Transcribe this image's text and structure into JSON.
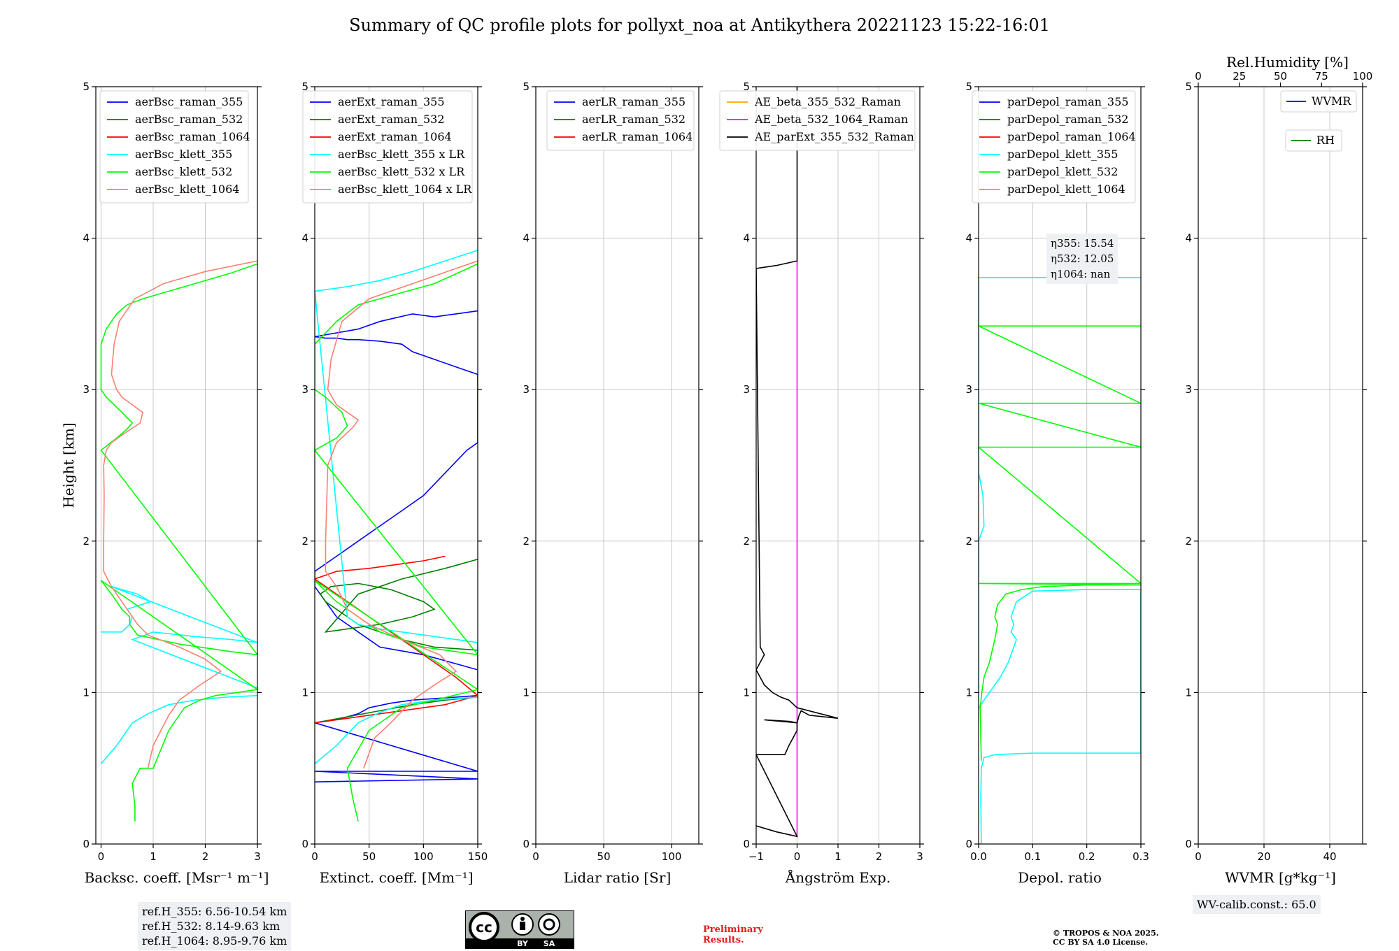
{
  "title": "Summary of QC profile plots for pollyxt_noa at Antikythera 20221123 15:22-16:01",
  "colors": {
    "grid": "#c8c8c8",
    "blue": "#0000ff",
    "green": "#008000",
    "red": "#ff0000",
    "cyan": "#00ffff",
    "lime": "#00ff00",
    "salmon": "#fa8072",
    "orange": "#ffa500",
    "magenta": "#ff00ff",
    "black": "#000000"
  },
  "chart_data": [
    {
      "type": "line",
      "panel": "backscatter",
      "xlabel": "Backsc. coeff. [Msr⁻¹ m⁻¹]",
      "ylabel": "Height [km]",
      "xlim": [
        -0.1,
        3
      ],
      "ylim": [
        0,
        5
      ],
      "xticks": [
        "0",
        "1",
        "2",
        "3"
      ],
      "xtick_values": [
        0,
        1,
        2,
        3
      ],
      "yticks": [
        "0",
        "1",
        "2",
        "3",
        "4",
        "5"
      ],
      "legend_location": "top-right",
      "series": [
        {
          "name": "aerBsc_raman_355",
          "color": "#0000ff",
          "x": [],
          "y": []
        },
        {
          "name": "aerBsc_raman_532",
          "color": "#008000",
          "x": [],
          "y": []
        },
        {
          "name": "aerBsc_raman_1064",
          "color": "#ff0000",
          "x": [],
          "y": []
        },
        {
          "name": "aerBsc_klett_355",
          "color": "#00ffff",
          "x": [
            0.0,
            0.3,
            0.6,
            0.9,
            1.3,
            1.8,
            2.4,
            3.0,
            3.3,
            0.6,
            0.85,
            1.0,
            1.8,
            2.5,
            3.0,
            0.2,
            0.7,
            0.95,
            0.5,
            0.6,
            0.55,
            0.4,
            0.2,
            0.0
          ],
          "y": [
            0.53,
            0.65,
            0.8,
            0.86,
            0.92,
            0.95,
            0.97,
            0.98,
            0.99,
            1.35,
            1.38,
            1.4,
            1.37,
            1.35,
            1.33,
            1.7,
            1.65,
            1.6,
            1.55,
            1.5,
            1.45,
            1.4,
            1.4,
            1.4
          ]
        },
        {
          "name": "aerBsc_klett_532",
          "color": "#00ff00",
          "x": [
            0.65,
            0.65,
            0.6,
            0.75,
            1.0,
            1.3,
            1.6,
            1.9,
            2.2,
            2.6,
            3.0,
            0.0,
            0.2,
            0.4,
            0.55,
            0.55,
            0.7,
            1.5,
            2.5,
            3.0,
            0.0,
            0.3,
            0.5,
            0.6,
            0.4,
            0.1,
            0.0,
            0.0,
            0.1,
            0.3,
            0.5,
            0.8,
            1.2,
            1.8,
            2.5,
            3.0
          ],
          "y": [
            0.15,
            0.25,
            0.4,
            0.5,
            0.5,
            0.75,
            0.9,
            0.95,
            0.98,
            1.0,
            1.02,
            1.74,
            1.65,
            1.55,
            1.5,
            1.45,
            1.38,
            1.32,
            1.27,
            1.25,
            2.6,
            2.68,
            2.74,
            2.78,
            2.85,
            2.95,
            3.0,
            3.3,
            3.4,
            3.5,
            3.56,
            3.6,
            3.64,
            3.7,
            3.77,
            3.83
          ]
        },
        {
          "name": "aerBsc_klett_1064",
          "color": "#fa8072",
          "x": [
            0.9,
            1.0,
            1.15,
            1.3,
            1.5,
            1.9,
            2.3,
            2.0,
            1.5,
            0.9,
            0.7,
            0.5,
            0.2,
            0.05,
            0.05,
            0.06,
            0.05,
            0.1,
            0.2,
            0.4,
            0.75,
            0.8,
            0.4,
            0.3,
            0.2,
            0.25,
            0.35,
            0.65,
            1.2,
            2.0,
            3.0
          ],
          "y": [
            0.5,
            0.65,
            0.75,
            0.85,
            0.95,
            1.05,
            1.14,
            1.22,
            1.3,
            1.38,
            1.45,
            1.55,
            1.7,
            1.8,
            2.0,
            2.3,
            2.5,
            2.6,
            2.65,
            2.7,
            2.78,
            2.85,
            2.95,
            3.0,
            3.1,
            3.3,
            3.45,
            3.6,
            3.7,
            3.78,
            3.85
          ]
        }
      ],
      "annotation": [
        "ref.H_355: 6.56-10.54 km",
        "ref.H_532: 8.14-9.63 km",
        "ref.H_1064: 8.95-9.76 km"
      ]
    },
    {
      "type": "line",
      "panel": "extinction",
      "xlabel": "Extinct. coeff. [Mm⁻¹]",
      "xlim": [
        0,
        150
      ],
      "ylim": [
        0,
        5
      ],
      "xticks": [
        "0",
        "50",
        "100",
        "150"
      ],
      "xtick_values": [
        0,
        50,
        100,
        150
      ],
      "yticks": [
        "0",
        "1",
        "2",
        "3",
        "4",
        "5"
      ],
      "legend_location": "top-right",
      "series": [
        {
          "name": "aerExt_raman_355",
          "color": "#0000ff",
          "x": [
            0,
            150,
            0,
            150,
            0,
            25,
            40,
            50,
            70,
            90,
            110,
            130,
            150,
            150,
            100,
            60,
            40,
            20,
            10,
            0,
            0,
            20,
            40,
            60,
            80,
            100,
            120,
            140,
            150,
            150,
            130,
            110,
            90,
            80,
            60,
            40,
            30,
            20,
            10,
            0,
            0,
            40,
            60,
            90,
            110,
            130,
            150
          ],
          "y": [
            0.41,
            0.43,
            0.48,
            0.48,
            0.8,
            0.83,
            0.86,
            0.9,
            0.93,
            0.95,
            0.96,
            0.97,
            0.98,
            1.15,
            1.25,
            1.3,
            1.4,
            1.5,
            1.6,
            1.7,
            1.8,
            1.9,
            2.0,
            2.1,
            2.2,
            2.3,
            2.45,
            2.6,
            2.65,
            3.1,
            3.15,
            3.2,
            3.25,
            3.3,
            3.32,
            3.33,
            3.33,
            3.34,
            3.34,
            3.35,
            3.35,
            3.4,
            3.45,
            3.5,
            3.48,
            3.5,
            3.52
          ]
        },
        {
          "name": "aerExt_raman_532",
          "color": "#008000",
          "x": [
            0,
            30,
            60,
            90,
            120,
            150,
            150,
            110,
            80,
            60,
            40,
            30,
            20,
            10,
            5,
            15,
            40,
            70,
            100,
            110,
            90,
            60,
            30,
            10,
            40,
            80,
            120,
            150
          ],
          "y": [
            0.8,
            0.84,
            0.88,
            0.92,
            0.95,
            0.97,
            1.28,
            1.3,
            1.35,
            1.4,
            1.45,
            1.5,
            1.55,
            1.6,
            1.65,
            1.7,
            1.72,
            1.68,
            1.6,
            1.55,
            1.5,
            1.45,
            1.42,
            1.4,
            1.65,
            1.75,
            1.82,
            1.88
          ]
        },
        {
          "name": "aerExt_raman_1064",
          "color": "#ff0000",
          "x": [
            0,
            20,
            40,
            60,
            80,
            100,
            120,
            130,
            140,
            150,
            130,
            110,
            90,
            70,
            50,
            30,
            20,
            10,
            0,
            20,
            50,
            80,
            100,
            120
          ],
          "y": [
            0.8,
            0.82,
            0.84,
            0.86,
            0.88,
            0.9,
            0.92,
            0.94,
            0.96,
            0.98,
            1.1,
            1.2,
            1.3,
            1.4,
            1.5,
            1.6,
            1.65,
            1.7,
            1.75,
            1.8,
            1.82,
            1.85,
            1.87,
            1.9
          ]
        },
        {
          "name": "aerBsc_klett_355 x LR",
          "color": "#00ffff",
          "x": [
            0,
            20,
            40,
            60,
            80,
            110,
            150,
            150,
            100,
            60,
            40,
            30,
            0,
            30,
            60,
            90,
            120,
            150
          ],
          "y": [
            0.53,
            0.65,
            0.8,
            0.87,
            0.92,
            0.95,
            0.97,
            1.33,
            1.38,
            1.42,
            1.45,
            1.5,
            3.65,
            3.68,
            3.72,
            3.78,
            3.85,
            3.92
          ]
        },
        {
          "name": "aerBsc_klett_532 x LR",
          "color": "#00ff00",
          "x": [
            40,
            35,
            30,
            50,
            80,
            110,
            150,
            0,
            20,
            40,
            60,
            100,
            150,
            0,
            20,
            30,
            25,
            10,
            0,
            0,
            20,
            40,
            70,
            110,
            150
          ],
          "y": [
            0.15,
            0.3,
            0.5,
            0.75,
            0.9,
            0.95,
            1.02,
            1.74,
            1.6,
            1.5,
            1.4,
            1.3,
            1.25,
            2.6,
            2.68,
            2.76,
            2.85,
            2.95,
            3.0,
            3.3,
            3.45,
            3.56,
            3.62,
            3.7,
            3.83
          ]
        },
        {
          "name": "aerBsc_klett_1064 x LR",
          "color": "#fa8072",
          "x": [
            45,
            55,
            70,
            90,
            110,
            130,
            115,
            80,
            50,
            30,
            20,
            10,
            10,
            12,
            20,
            35,
            40,
            20,
            12,
            15,
            25,
            50,
            90,
            150
          ],
          "y": [
            0.5,
            0.7,
            0.8,
            0.95,
            1.05,
            1.14,
            1.25,
            1.35,
            1.45,
            1.55,
            1.7,
            1.8,
            2.0,
            2.5,
            2.65,
            2.75,
            2.8,
            2.9,
            3.0,
            3.2,
            3.45,
            3.6,
            3.7,
            3.85
          ]
        }
      ]
    },
    {
      "type": "line",
      "panel": "lidar-ratio",
      "xlabel": "Lidar ratio [Sr]",
      "xlim": [
        0,
        120
      ],
      "ylim": [
        0,
        5
      ],
      "xticks": [
        "0",
        "50",
        "100"
      ],
      "xtick_values": [
        0,
        50,
        100
      ],
      "yticks": [
        "0",
        "1",
        "2",
        "3",
        "4",
        "5"
      ],
      "legend_location": "top-left",
      "series": [
        {
          "name": "aerLR_raman_355",
          "color": "#0000ff",
          "x": [],
          "y": []
        },
        {
          "name": "aerLR_raman_532",
          "color": "#008000",
          "x": [],
          "y": []
        },
        {
          "name": "aerLR_raman_1064",
          "color": "#ff0000",
          "x": [],
          "y": []
        }
      ]
    },
    {
      "type": "line",
      "panel": "angstrom",
      "xlabel": "Ångström Exp.",
      "xlim": [
        -1,
        3
      ],
      "ylim": [
        0,
        5
      ],
      "xticks": [
        "−1",
        "0",
        "1",
        "2",
        "3"
      ],
      "xtick_values": [
        -1,
        0,
        1,
        2,
        3
      ],
      "yticks": [
        "0",
        "1",
        "2",
        "3",
        "4",
        "5"
      ],
      "legend_location": "top-left",
      "series": [
        {
          "name": "AE_beta_355_532_Raman",
          "color": "#ffa500",
          "x": [],
          "y": []
        },
        {
          "name": "AE_beta_532_1064_Raman",
          "color": "#ff00ff",
          "x": [
            0,
            0
          ],
          "y": [
            0.05,
            3.85
          ]
        },
        {
          "name": "AE_parExt_355_532_Raman",
          "color": "#000000",
          "x": [
            -1,
            -0.5,
            0,
            -1,
            -0.3,
            -0.2,
            0,
            0.0,
            -0.8,
            -0.2,
            0,
            0.05,
            0.1,
            0.3,
            1.0,
            0.0,
            -0.2,
            -0.4,
            -0.6,
            -0.8,
            -1,
            -0.8,
            -0.9,
            -1,
            -0.5,
            0,
            0,
            0
          ],
          "y": [
            0.12,
            0.08,
            0.05,
            0.59,
            0.59,
            0.65,
            0.75,
            0.8,
            0.82,
            0.81,
            0.8,
            0.85,
            0.88,
            0.85,
            0.83,
            0.9,
            0.95,
            0.97,
            1.0,
            1.05,
            1.15,
            1.25,
            1.3,
            3.8,
            3.82,
            3.85,
            4.3,
            5.0
          ]
        }
      ]
    },
    {
      "type": "line",
      "panel": "depolarization",
      "xlabel": "Depol. ratio",
      "xlim": [
        0,
        0.3
      ],
      "ylim": [
        0,
        5
      ],
      "xticks": [
        "0.0",
        "0.1",
        "0.2",
        "0.3"
      ],
      "xtick_values": [
        0,
        0.1,
        0.2,
        0.3
      ],
      "yticks": [
        "0",
        "1",
        "2",
        "3",
        "4",
        "5"
      ],
      "legend_location": "top-left",
      "series": [
        {
          "name": "parDepol_raman_355",
          "color": "#0000ff",
          "x": [],
          "y": []
        },
        {
          "name": "parDepol_raman_532",
          "color": "#008000",
          "x": [],
          "y": []
        },
        {
          "name": "parDepol_raman_1064",
          "color": "#ff0000",
          "x": [],
          "y": []
        },
        {
          "name": "parDepol_klett_355",
          "color": "#00ffff",
          "x": [
            0.005,
            0.004,
            0.005,
            0.01,
            0.03,
            0.1,
            0.2,
            0.3,
            0.3,
            0.2,
            0.1,
            0.07,
            0.06,
            0.065,
            0.06,
            0.07,
            0.065,
            0.055,
            0.04,
            0.02,
            0.01,
            0.0,
            0.0,
            0.01,
            0.008,
            0.003,
            0.0,
            0.0,
            0.3
          ],
          "y": [
            0.0,
            0.3,
            0.5,
            0.57,
            0.59,
            0.6,
            0.6,
            0.6,
            1.68,
            1.68,
            1.67,
            1.6,
            1.5,
            1.45,
            1.4,
            1.35,
            1.3,
            1.2,
            1.1,
            1.0,
            0.95,
            0.9,
            2.0,
            2.1,
            2.3,
            2.4,
            2.45,
            3.74,
            3.74
          ]
        },
        {
          "name": "parDepol_klett_532",
          "color": "#00ff00",
          "x": [
            0.005,
            0.004,
            0.003,
            0.006,
            0.01,
            0.02,
            0.03,
            0.035,
            0.03,
            0.035,
            0.05,
            0.08,
            0.12,
            0.2,
            0.3,
            0.0,
            0.3,
            0.0,
            0.3,
            0.0,
            0.3,
            0.0,
            0.3
          ],
          "y": [
            0.55,
            0.7,
            0.9,
            1.0,
            1.1,
            1.2,
            1.35,
            1.45,
            1.5,
            1.58,
            1.65,
            1.68,
            1.7,
            1.71,
            1.71,
            1.72,
            1.72,
            2.62,
            2.62,
            2.91,
            2.91,
            3.42,
            3.42
          ]
        },
        {
          "name": "parDepol_klett_1064",
          "color": "#fa8072",
          "x": [],
          "y": []
        }
      ],
      "annotation": [
        "η355: 15.54",
        "η532: 12.05",
        "η1064: nan"
      ]
    },
    {
      "type": "line",
      "panel": "water-vapor",
      "xlabel": "WVMR [g*kg⁻¹]",
      "top_xlabel": "Rel.Humidity [%]",
      "xlim": [
        0,
        50
      ],
      "top_xlim": [
        0,
        100
      ],
      "ylim": [
        0,
        5
      ],
      "xticks": [
        "0",
        "20",
        "40"
      ],
      "xtick_values": [
        0,
        20,
        40
      ],
      "top_xticks": [
        "0",
        "25",
        "50",
        "75",
        "100"
      ],
      "top_xtick_values": [
        0,
        25,
        50,
        75,
        100
      ],
      "yticks": [
        "0",
        "1",
        "2",
        "3",
        "4",
        "5"
      ],
      "series": [
        {
          "name": "WVMR",
          "color": "#0000ff",
          "x": [],
          "y": []
        },
        {
          "name": "RH",
          "color": "#008000",
          "x": [],
          "y": []
        }
      ],
      "annotation": [
        "WV-calib.const.: 65.0"
      ]
    }
  ],
  "cc_badge": {
    "top": "cc",
    "bottom_left": "BY",
    "bottom_right": "SA"
  },
  "preliminary": [
    "Preliminary",
    "Results."
  ],
  "copyright": [
    "© TROPOS & NOA 2025.",
    "CC BY SA 4.0 License."
  ]
}
